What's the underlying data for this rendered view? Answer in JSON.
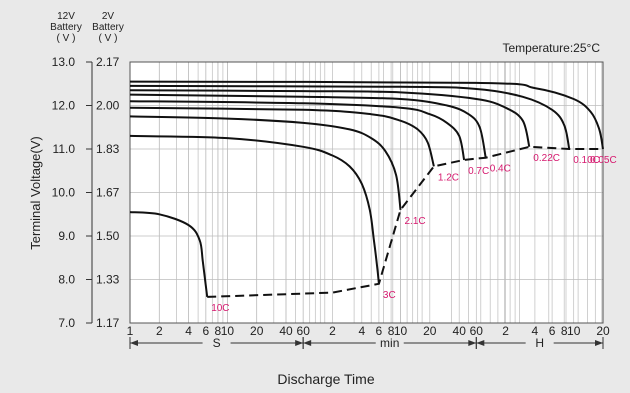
{
  "chart_data": {
    "type": "line",
    "header_12v": [
      "12V",
      "Battery",
      "( V )"
    ],
    "header_2v": [
      "2V",
      "Battery",
      "( V )"
    ],
    "annotation": "Temperature:25°C",
    "ylabel": "Terminal Voltage(V)",
    "xlabel": "Discharge Time",
    "y_ticks_12v": [
      "13.0",
      "12.0",
      "11.0",
      "10.0",
      "9.0",
      "8.0",
      "7.0"
    ],
    "y_ticks_2v": [
      "2.17",
      "2.00",
      "1.83",
      "1.67",
      "1.50",
      "1.33",
      "1.17"
    ],
    "ylim": [
      7.0,
      13.0
    ],
    "x_tick_labels": [
      "1",
      "2",
      "4",
      "6",
      "8",
      "10",
      "20",
      "40",
      "60",
      "2",
      "4",
      "6",
      "8",
      "10",
      "20",
      "40",
      "60",
      "2",
      "4",
      "6",
      "8",
      "10",
      "20"
    ],
    "x_unit_labels": [
      "S",
      "min",
      "H"
    ],
    "x_scale": "log",
    "grid": true,
    "series": [
      {
        "name": "10C",
        "end_x_s": 6.2,
        "end_v": 7.6,
        "points": [
          [
            1,
            9.55
          ],
          [
            2,
            9.5
          ],
          [
            4,
            9.25
          ],
          [
            5.2,
            8.9
          ],
          [
            5.6,
            8.4
          ],
          [
            6.2,
            7.6
          ]
        ]
      },
      {
        "name": "3C",
        "end_x_s": 360,
        "end_v": 7.9,
        "points": [
          [
            1,
            11.3
          ],
          [
            10,
            11.25
          ],
          [
            60,
            11.05
          ],
          [
            120,
            10.85
          ],
          [
            180,
            10.6
          ],
          [
            240,
            10.2
          ],
          [
            290,
            9.6
          ],
          [
            320,
            8.9
          ],
          [
            345,
            8.3
          ],
          [
            360,
            7.9
          ]
        ]
      },
      {
        "name": "2.1C",
        "end_x_s": 600,
        "end_v": 9.6,
        "points": [
          [
            1,
            11.75
          ],
          [
            10,
            11.7
          ],
          [
            60,
            11.6
          ],
          [
            180,
            11.45
          ],
          [
            300,
            11.25
          ],
          [
            420,
            10.95
          ],
          [
            540,
            10.4
          ],
          [
            600,
            9.6
          ]
        ]
      },
      {
        "name": "1.2C",
        "end_x_s": 1320,
        "end_v": 10.6,
        "points": [
          [
            1,
            11.95
          ],
          [
            60,
            11.9
          ],
          [
            300,
            11.8
          ],
          [
            600,
            11.65
          ],
          [
            900,
            11.45
          ],
          [
            1140,
            11.15
          ],
          [
            1320,
            10.6
          ]
        ]
      },
      {
        "name": "0.7C",
        "end_x_s": 2700,
        "end_v": 10.75,
        "points": [
          [
            1,
            12.1
          ],
          [
            60,
            12.05
          ],
          [
            600,
            11.95
          ],
          [
            1200,
            11.8
          ],
          [
            1800,
            11.6
          ],
          [
            2400,
            11.3
          ],
          [
            2700,
            10.75
          ]
        ]
      },
      {
        "name": "0.4C",
        "end_x_s": 4500,
        "end_v": 10.8,
        "points": [
          [
            1,
            12.25
          ],
          [
            60,
            12.2
          ],
          [
            600,
            12.15
          ],
          [
            1800,
            12.0
          ],
          [
            3000,
            11.8
          ],
          [
            3900,
            11.5
          ],
          [
            4500,
            10.8
          ]
        ]
      },
      {
        "name": "0.22C",
        "end_x_s": 12600,
        "end_v": 11.05,
        "points": [
          [
            1,
            12.35
          ],
          [
            60,
            12.33
          ],
          [
            600,
            12.3
          ],
          [
            3600,
            12.15
          ],
          [
            7200,
            11.95
          ],
          [
            10800,
            11.65
          ],
          [
            12600,
            11.05
          ]
        ]
      },
      {
        "name": "0.10C",
        "end_x_s": 32400,
        "end_v": 11.0,
        "points": [
          [
            1,
            12.45
          ],
          [
            600,
            12.43
          ],
          [
            3600,
            12.38
          ],
          [
            10800,
            12.2
          ],
          [
            21600,
            11.9
          ],
          [
            28800,
            11.55
          ],
          [
            32400,
            11.0
          ]
        ]
      },
      {
        "name": "0.05C",
        "end_x_s": 72000,
        "end_v": 11.0,
        "points": [
          [
            1,
            12.55
          ],
          [
            3600,
            12.52
          ],
          [
            14400,
            12.4
          ],
          [
            36000,
            12.15
          ],
          [
            54000,
            11.85
          ],
          [
            66000,
            11.45
          ],
          [
            72000,
            11.0
          ]
        ]
      }
    ],
    "cutoff_line": {
      "style": "dashed",
      "points": [
        [
          6.2,
          7.6
        ],
        [
          120,
          7.7
        ],
        [
          360,
          7.9
        ],
        [
          600,
          9.6
        ],
        [
          1320,
          10.6
        ],
        [
          2700,
          10.75
        ],
        [
          4500,
          10.8
        ],
        [
          12600,
          11.05
        ],
        [
          32400,
          11.0
        ],
        [
          72000,
          11.0
        ]
      ]
    },
    "colors": {
      "curve": "#111111",
      "label": "#d6186e",
      "grid": "#bdbdbd",
      "background": "#e9e9e9",
      "plot_bg": "#ffffff"
    }
  }
}
